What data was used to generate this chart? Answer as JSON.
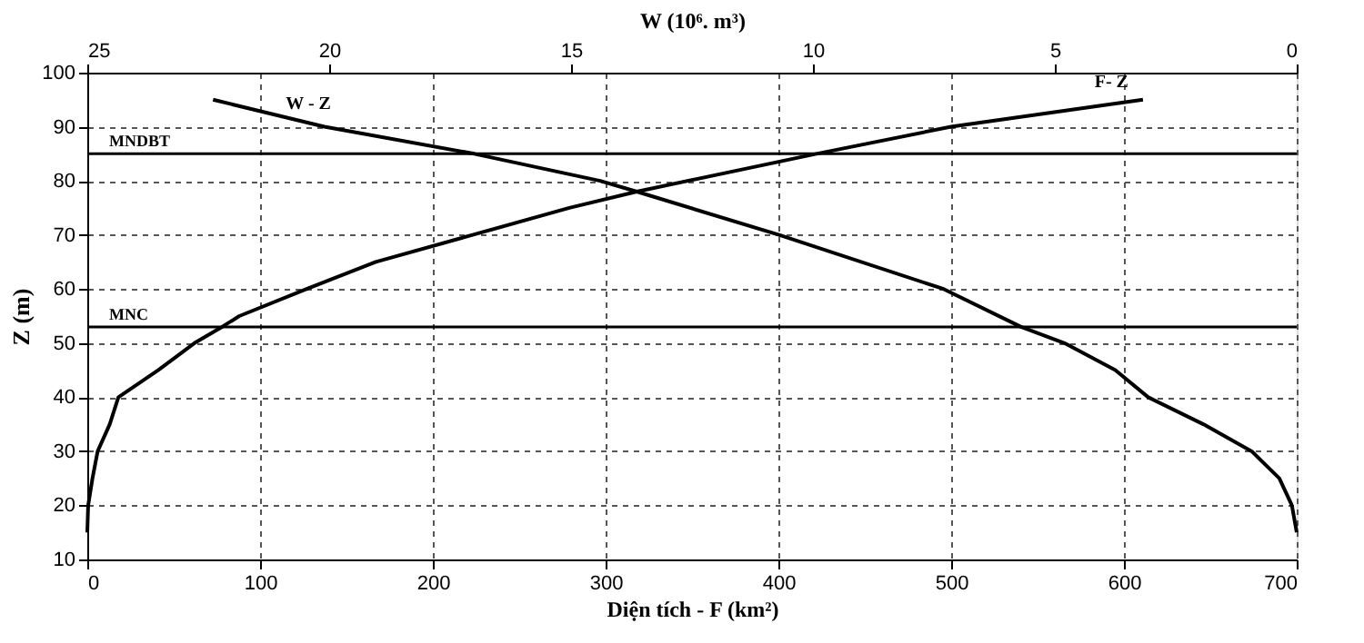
{
  "chart_data": {
    "type": "line",
    "xlabel": "Diện tích - F (km²)",
    "x2label": "W (10⁶. m³)",
    "ylabel": "Z (m)",
    "xlim": [
      0,
      700
    ],
    "xticks": [
      0,
      100,
      200,
      300,
      400,
      500,
      600,
      700
    ],
    "x2lim": [
      25,
      0
    ],
    "x2ticks": [
      25,
      20,
      15,
      10,
      5,
      0
    ],
    "ylim": [
      10,
      100
    ],
    "yticks": [
      10,
      20,
      30,
      40,
      50,
      60,
      70,
      80,
      90,
      100
    ],
    "grid": true,
    "legend": false,
    "marker": "none",
    "line_style": "solid",
    "series": [
      {
        "name": "W - Z",
        "color": "#000000",
        "axis": "x2",
        "x": [
          22.4,
          20.1,
          17.0,
          14.4,
          13.64,
          10.7,
          7.3,
          5.7,
          4.8,
          3.75,
          3.07,
          1.93,
          0.93,
          0.36,
          0.1,
          0
        ],
        "values": [
          95,
          90,
          85,
          80,
          78,
          70,
          60,
          53,
          50,
          45,
          40,
          35,
          30,
          25,
          20,
          15
        ]
      },
      {
        "name": "F- Z",
        "color": "#000000",
        "x": [
          0,
          0.5,
          3,
          6,
          13,
          18,
          41,
          62,
          78,
          88,
          127,
          167,
          223,
          279,
          318,
          422,
          500,
          611
        ],
        "values": [
          15,
          20,
          25,
          30,
          35,
          40,
          45,
          50,
          53,
          55,
          60,
          65,
          70,
          75,
          78,
          85,
          90,
          95
        ]
      }
    ],
    "ref_lines": [
      {
        "axis": "y",
        "value": 85,
        "label": "MNDBT",
        "color": "#000000"
      },
      {
        "axis": "y",
        "value": 53,
        "label": "MNC",
        "color": "#000000"
      }
    ]
  }
}
